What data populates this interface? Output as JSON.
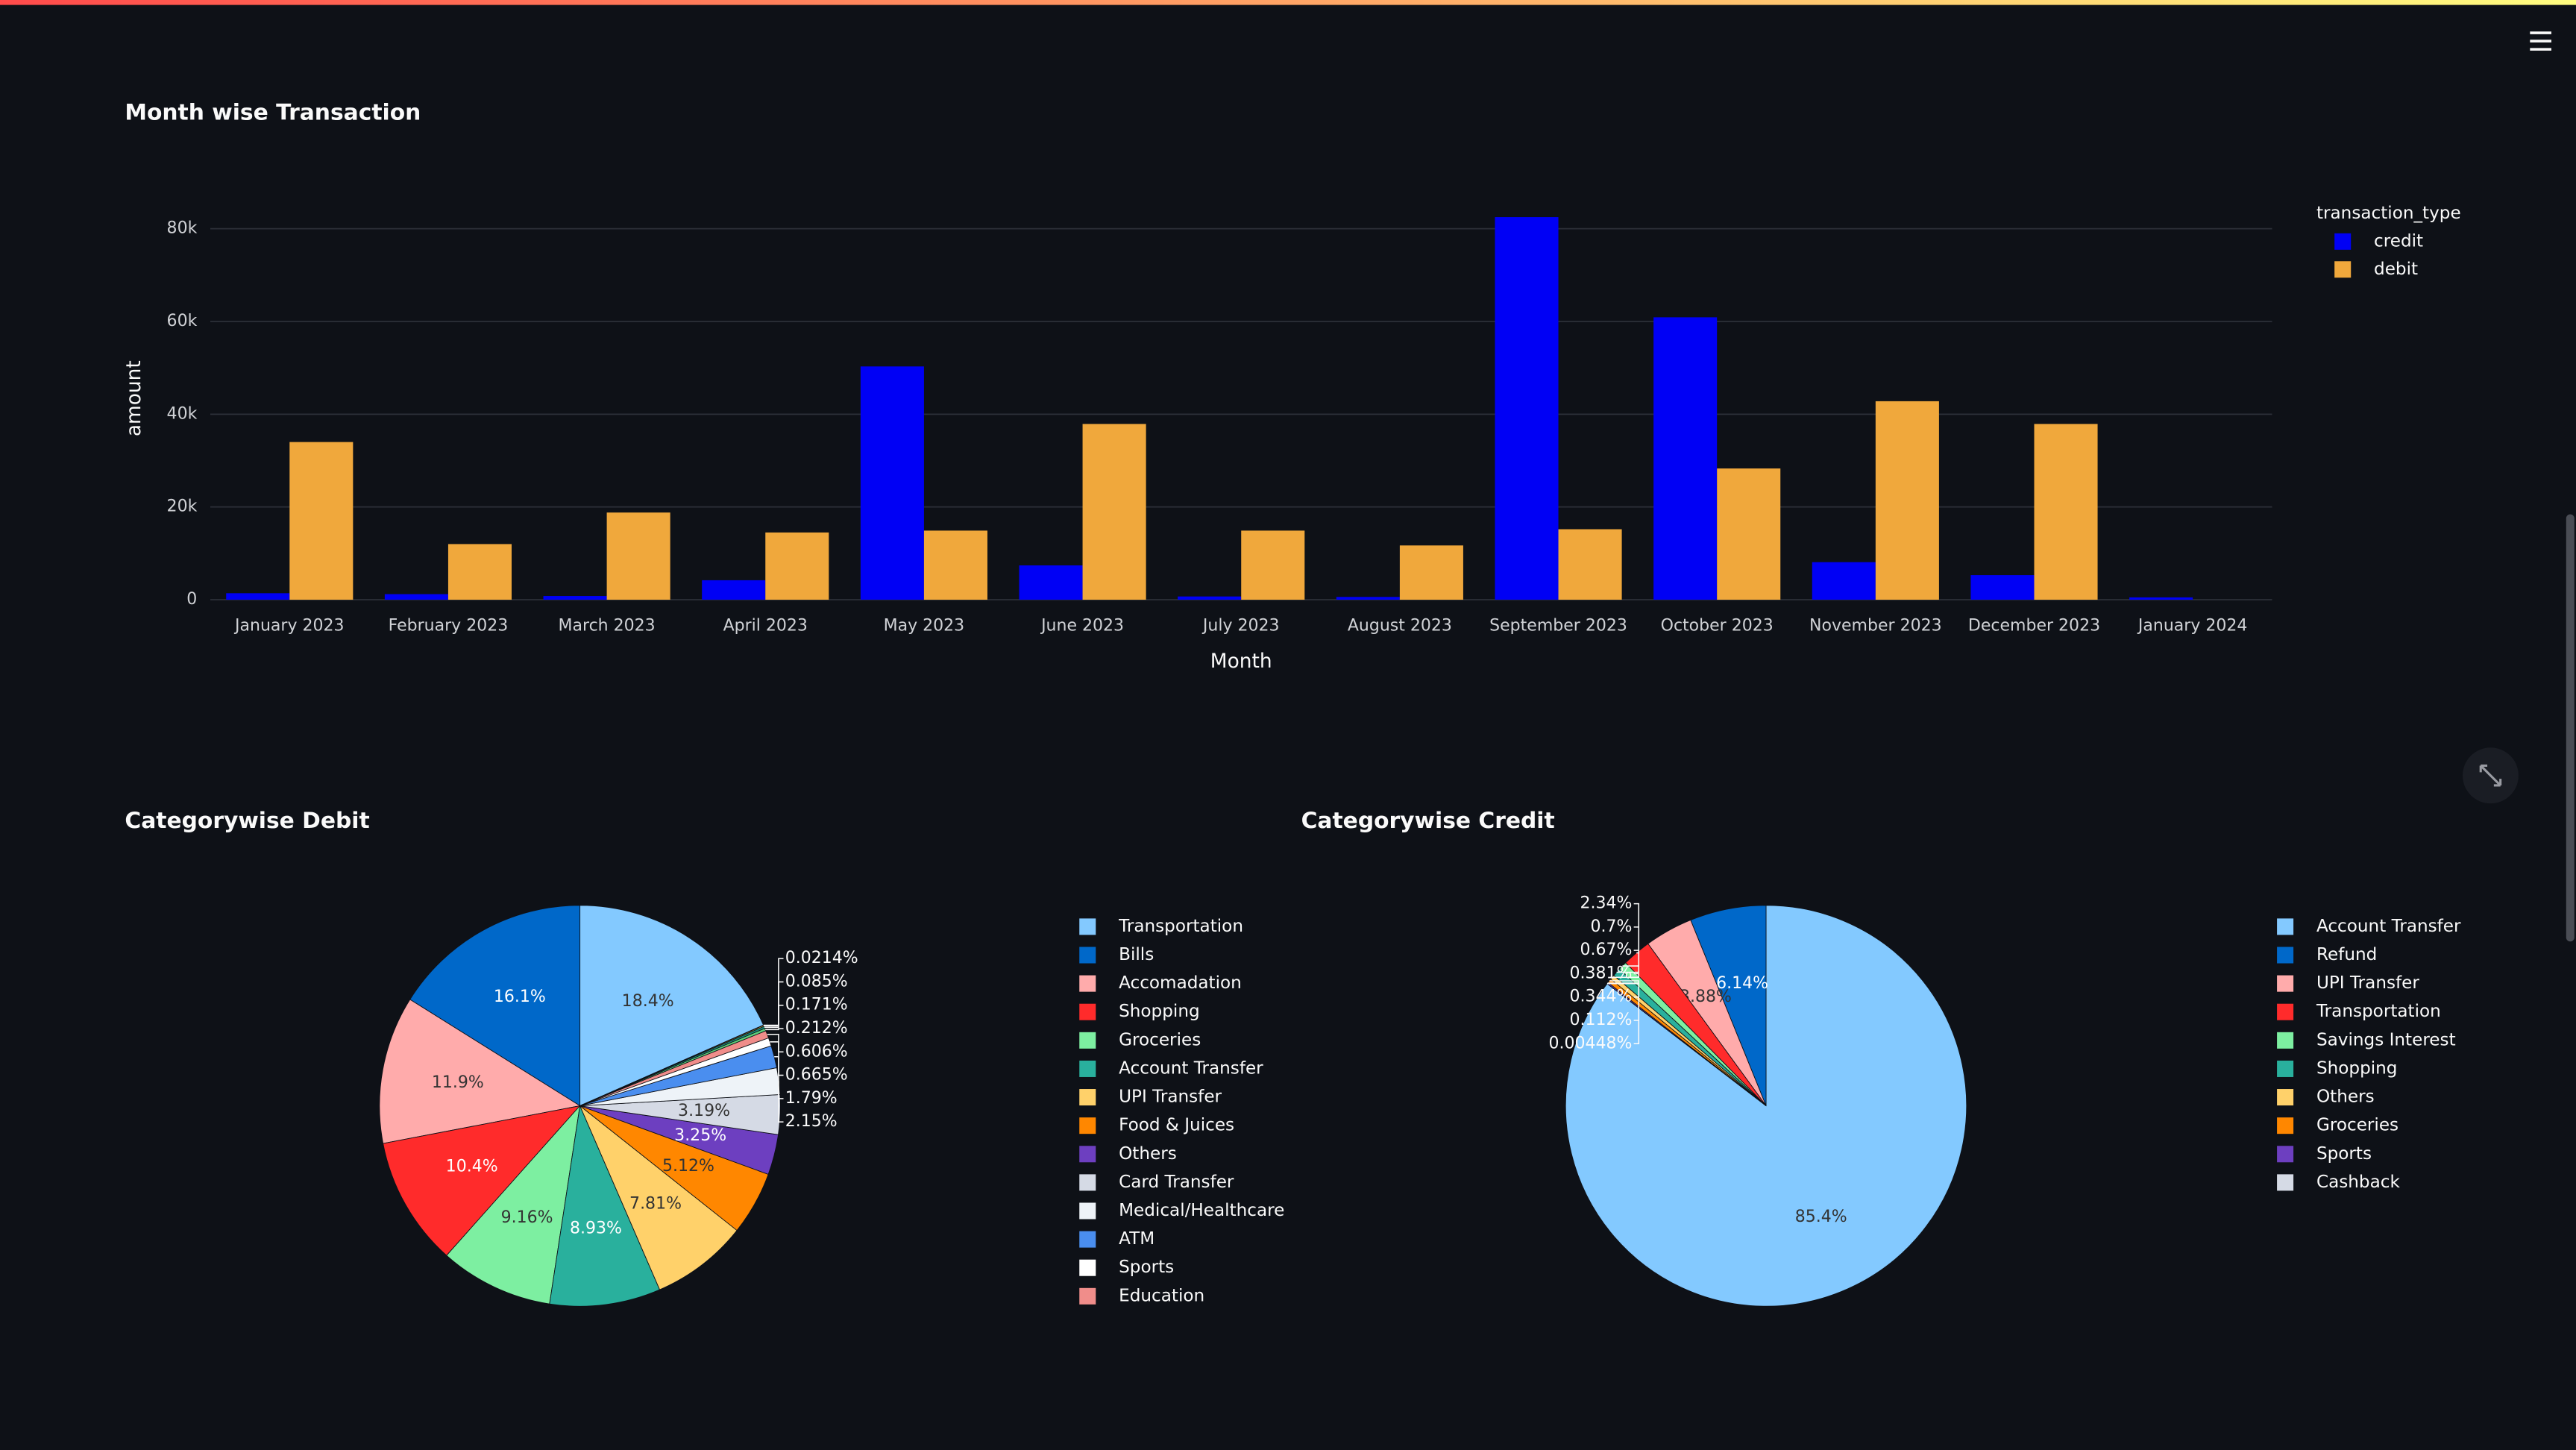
{
  "chart_data": [
    {
      "type": "bar",
      "title": "Month wise Transaction",
      "x_label": "Month",
      "y_label": "amount",
      "legend_title": "transaction_type",
      "legend": "outside-top-right",
      "grid": true,
      "categories": [
        "January 2023",
        "February 2023",
        "March 2023",
        "April 2023",
        "May 2023",
        "June 2023",
        "July 2023",
        "August 2023",
        "September 2023",
        "October 2023",
        "November 2023",
        "December 2023",
        "January 2024"
      ],
      "series": [
        {
          "name": "credit",
          "color": "#0000f5",
          "values": [
            1400,
            1200,
            800,
            4200,
            50300,
            7400,
            700,
            600,
            82500,
            60900,
            8100,
            5300,
            500
          ]
        },
        {
          "name": "debit",
          "color": "#f0a83c",
          "values": [
            34000,
            12000,
            18800,
            14500,
            14900,
            37900,
            14900,
            11700,
            15200,
            28300,
            42800,
            37900,
            null
          ]
        }
      ],
      "ylim": [
        0,
        86800
      ],
      "yticks": [
        0,
        {
          "value": 20000,
          "label": "20k"
        },
        {
          "value": 40000,
          "label": "40k"
        },
        {
          "value": 60000,
          "label": "60k"
        },
        {
          "value": 80000,
          "label": "80k"
        }
      ]
    },
    {
      "type": "pie",
      "title": "Categorywise Debit",
      "categories": [
        "Transportation",
        "Bills",
        "Accomadation",
        "Shopping",
        "Groceries",
        "Account Transfer",
        "UPI Transfer",
        "Food & Juices",
        "Others",
        "Card Transfer",
        "Medical/Healthcare",
        "ATM",
        "Sports",
        "Education",
        null,
        null,
        null,
        null
      ],
      "values": [
        18.4,
        16.1,
        11.9,
        10.4,
        9.16,
        8.93,
        7.81,
        5.12,
        3.25,
        3.19,
        2.15,
        1.79,
        0.665,
        0.606,
        0.212,
        0.171,
        0.085,
        0.0214
      ],
      "value_labels": [
        "18.4%",
        "16.1%",
        "11.9%",
        "10.4%",
        "9.16%",
        "8.93%",
        "7.81%",
        "5.12%",
        "3.25%",
        "3.19%",
        "2.15%",
        "1.79%",
        "0.665%",
        "0.606%",
        "0.212%",
        "0.171%",
        "0.085%",
        "0.0214%"
      ],
      "colors": [
        "#83c9ff",
        "#0068c9",
        "#ffabab",
        "#ff2b2b",
        "#7defa1",
        "#29b09d",
        "#ffd16a",
        "#ff8700",
        "#6d3fc0",
        "#d5dae5",
        "#eef3f8",
        "#4a8eef",
        "#ffffff",
        "#f08d8a",
        "#5cd07a",
        "#1a8a7a",
        "#f5c04a",
        "#e67a00"
      ]
    },
    {
      "type": "pie",
      "title": "Categorywise Credit",
      "categories": [
        "Account Transfer",
        "Refund",
        "UPI Transfer",
        "Transportation",
        "Savings Interest",
        "Shopping",
        "Others",
        "Groceries",
        "Sports",
        "Cashback"
      ],
      "values": [
        85.4,
        6.14,
        3.88,
        2.34,
        0.7,
        0.67,
        0.381,
        0.344,
        0.112,
        0.00448
      ],
      "value_labels": [
        "85.4%",
        "6.14%",
        "3.88%",
        "2.34%",
        "0.7%",
        "0.67%",
        "0.381%",
        "0.344%",
        "0.112%",
        "0.00448%"
      ],
      "colors": [
        "#83c9ff",
        "#0068c9",
        "#ffabab",
        "#ff2b2b",
        "#7defa1",
        "#29b09d",
        "#ffd16a",
        "#ff8700",
        "#6d3fc0",
        "#d5dae5"
      ]
    }
  ]
}
